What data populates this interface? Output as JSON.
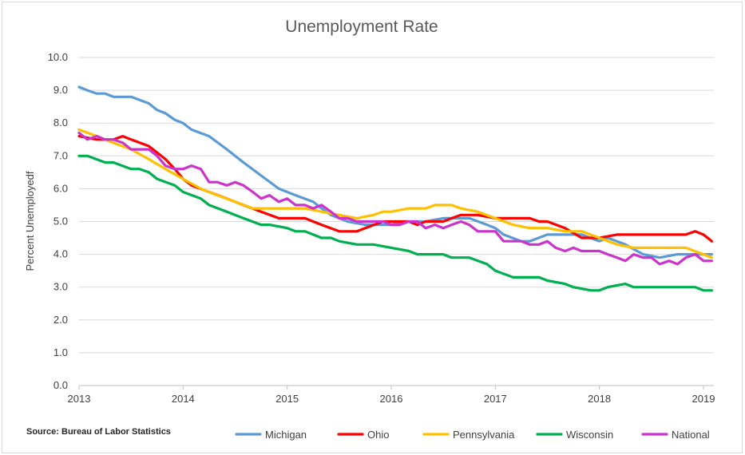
{
  "chart_data": {
    "type": "line",
    "title": "Unemployment Rate",
    "ylabel": "Percent Unemployedf",
    "xlabel": "",
    "source": "Source: Bureau of Labor Statistics",
    "ylim": [
      0,
      10
    ],
    "xlim": [
      2013,
      2019.1
    ],
    "y_ticks": [
      "0.0",
      "1.0",
      "2.0",
      "3.0",
      "4.0",
      "5.0",
      "6.0",
      "7.0",
      "8.0",
      "9.0",
      "10.0"
    ],
    "x_ticks": [
      "2013",
      "2014",
      "2015",
      "2016",
      "2017",
      "2018",
      "2019"
    ],
    "grid": true,
    "legend_position": "bottom",
    "series": [
      {
        "name": "Michigan",
        "color": "#5b9bd5",
        "points": [
          [
            2013.0,
            9.1
          ],
          [
            2013.08,
            9.0
          ],
          [
            2013.17,
            8.9
          ],
          [
            2013.25,
            8.9
          ],
          [
            2013.33,
            8.8
          ],
          [
            2013.5,
            8.8
          ],
          [
            2013.67,
            8.6
          ],
          [
            2013.75,
            8.4
          ],
          [
            2013.83,
            8.3
          ],
          [
            2013.92,
            8.1
          ],
          [
            2014.0,
            8.0
          ],
          [
            2014.08,
            7.8
          ],
          [
            2014.25,
            7.6
          ],
          [
            2014.42,
            7.2
          ],
          [
            2014.58,
            6.8
          ],
          [
            2014.75,
            6.4
          ],
          [
            2014.92,
            6.0
          ],
          [
            2015.0,
            5.9
          ],
          [
            2015.08,
            5.8
          ],
          [
            2015.25,
            5.6
          ],
          [
            2015.33,
            5.4
          ],
          [
            2015.42,
            5.2
          ],
          [
            2015.5,
            5.1
          ],
          [
            2015.58,
            5.0
          ],
          [
            2015.75,
            4.9
          ],
          [
            2015.83,
            4.9
          ],
          [
            2016.0,
            4.9
          ],
          [
            2016.17,
            5.0
          ],
          [
            2016.33,
            5.0
          ],
          [
            2016.5,
            5.1
          ],
          [
            2016.67,
            5.1
          ],
          [
            2016.75,
            5.1
          ],
          [
            2016.92,
            4.9
          ],
          [
            2017.0,
            4.8
          ],
          [
            2017.08,
            4.6
          ],
          [
            2017.25,
            4.4
          ],
          [
            2017.33,
            4.4
          ],
          [
            2017.5,
            4.6
          ],
          [
            2017.67,
            4.6
          ],
          [
            2017.83,
            4.6
          ],
          [
            2018.0,
            4.4
          ],
          [
            2018.08,
            4.5
          ],
          [
            2018.25,
            4.3
          ],
          [
            2018.42,
            4.0
          ],
          [
            2018.58,
            3.9
          ],
          [
            2018.75,
            4.0
          ],
          [
            2018.92,
            4.0
          ],
          [
            2019.08,
            4.0
          ]
        ]
      },
      {
        "name": "Ohio",
        "color": "#ff0000",
        "points": [
          [
            2013.0,
            7.6
          ],
          [
            2013.17,
            7.5
          ],
          [
            2013.25,
            7.5
          ],
          [
            2013.33,
            7.5
          ],
          [
            2013.42,
            7.6
          ],
          [
            2013.5,
            7.5
          ],
          [
            2013.67,
            7.3
          ],
          [
            2013.83,
            6.9
          ],
          [
            2013.92,
            6.6
          ],
          [
            2014.0,
            6.3
          ],
          [
            2014.08,
            6.1
          ],
          [
            2014.25,
            5.9
          ],
          [
            2014.42,
            5.7
          ],
          [
            2014.58,
            5.5
          ],
          [
            2014.75,
            5.3
          ],
          [
            2014.92,
            5.1
          ],
          [
            2015.0,
            5.1
          ],
          [
            2015.17,
            5.1
          ],
          [
            2015.33,
            4.9
          ],
          [
            2015.5,
            4.7
          ],
          [
            2015.67,
            4.7
          ],
          [
            2015.75,
            4.8
          ],
          [
            2015.92,
            5.0
          ],
          [
            2016.0,
            5.0
          ],
          [
            2016.17,
            5.0
          ],
          [
            2016.25,
            4.9
          ],
          [
            2016.33,
            5.0
          ],
          [
            2016.5,
            5.0
          ],
          [
            2016.58,
            5.1
          ],
          [
            2016.67,
            5.2
          ],
          [
            2016.83,
            5.2
          ],
          [
            2017.0,
            5.1
          ],
          [
            2017.25,
            5.1
          ],
          [
            2017.33,
            5.1
          ],
          [
            2017.42,
            5.0
          ],
          [
            2017.5,
            5.0
          ],
          [
            2017.67,
            4.8
          ],
          [
            2017.83,
            4.5
          ],
          [
            2017.92,
            4.5
          ],
          [
            2018.0,
            4.5
          ],
          [
            2018.17,
            4.6
          ],
          [
            2018.33,
            4.6
          ],
          [
            2018.5,
            4.6
          ],
          [
            2018.67,
            4.6
          ],
          [
            2018.83,
            4.6
          ],
          [
            2018.92,
            4.7
          ],
          [
            2019.0,
            4.6
          ],
          [
            2019.08,
            4.4
          ]
        ]
      },
      {
        "name": "Pennsylvania",
        "color": "#ffc000",
        "points": [
          [
            2013.0,
            7.8
          ],
          [
            2013.17,
            7.6
          ],
          [
            2013.33,
            7.4
          ],
          [
            2013.5,
            7.2
          ],
          [
            2013.67,
            6.9
          ],
          [
            2013.83,
            6.6
          ],
          [
            2014.0,
            6.3
          ],
          [
            2014.17,
            6.0
          ],
          [
            2014.33,
            5.8
          ],
          [
            2014.5,
            5.6
          ],
          [
            2014.67,
            5.4
          ],
          [
            2014.83,
            5.4
          ],
          [
            2015.0,
            5.4
          ],
          [
            2015.17,
            5.4
          ],
          [
            2015.33,
            5.3
          ],
          [
            2015.5,
            5.2
          ],
          [
            2015.67,
            5.1
          ],
          [
            2015.83,
            5.2
          ],
          [
            2015.92,
            5.3
          ],
          [
            2016.0,
            5.3
          ],
          [
            2016.17,
            5.4
          ],
          [
            2016.33,
            5.4
          ],
          [
            2016.42,
            5.5
          ],
          [
            2016.58,
            5.5
          ],
          [
            2016.67,
            5.4
          ],
          [
            2016.83,
            5.3
          ],
          [
            2017.0,
            5.1
          ],
          [
            2017.17,
            4.9
          ],
          [
            2017.33,
            4.8
          ],
          [
            2017.5,
            4.8
          ],
          [
            2017.67,
            4.7
          ],
          [
            2017.83,
            4.7
          ],
          [
            2018.0,
            4.5
          ],
          [
            2018.17,
            4.3
          ],
          [
            2018.33,
            4.2
          ],
          [
            2018.5,
            4.2
          ],
          [
            2018.67,
            4.2
          ],
          [
            2018.83,
            4.2
          ],
          [
            2019.0,
            4.0
          ],
          [
            2019.08,
            3.9
          ]
        ]
      },
      {
        "name": "Wisconsin",
        "color": "#00b050",
        "points": [
          [
            2013.0,
            7.0
          ],
          [
            2013.08,
            7.0
          ],
          [
            2013.25,
            6.8
          ],
          [
            2013.33,
            6.8
          ],
          [
            2013.5,
            6.6
          ],
          [
            2013.58,
            6.6
          ],
          [
            2013.67,
            6.5
          ],
          [
            2013.75,
            6.3
          ],
          [
            2013.92,
            6.1
          ],
          [
            2014.0,
            5.9
          ],
          [
            2014.17,
            5.7
          ],
          [
            2014.25,
            5.5
          ],
          [
            2014.42,
            5.3
          ],
          [
            2014.58,
            5.1
          ],
          [
            2014.75,
            4.9
          ],
          [
            2014.83,
            4.9
          ],
          [
            2015.0,
            4.8
          ],
          [
            2015.08,
            4.7
          ],
          [
            2015.17,
            4.7
          ],
          [
            2015.33,
            4.5
          ],
          [
            2015.42,
            4.5
          ],
          [
            2015.5,
            4.4
          ],
          [
            2015.67,
            4.3
          ],
          [
            2015.83,
            4.3
          ],
          [
            2016.0,
            4.2
          ],
          [
            2016.17,
            4.1
          ],
          [
            2016.25,
            4.0
          ],
          [
            2016.5,
            4.0
          ],
          [
            2016.58,
            3.9
          ],
          [
            2016.75,
            3.9
          ],
          [
            2016.92,
            3.7
          ],
          [
            2017.0,
            3.5
          ],
          [
            2017.17,
            3.3
          ],
          [
            2017.33,
            3.3
          ],
          [
            2017.42,
            3.3
          ],
          [
            2017.5,
            3.2
          ],
          [
            2017.67,
            3.1
          ],
          [
            2017.75,
            3.0
          ],
          [
            2017.92,
            2.9
          ],
          [
            2018.0,
            2.9
          ],
          [
            2018.08,
            3.0
          ],
          [
            2018.25,
            3.1
          ],
          [
            2018.33,
            3.0
          ],
          [
            2018.5,
            3.0
          ],
          [
            2018.67,
            3.0
          ],
          [
            2018.83,
            3.0
          ],
          [
            2018.92,
            3.0
          ],
          [
            2019.0,
            2.9
          ],
          [
            2019.08,
            2.9
          ]
        ]
      },
      {
        "name": "National",
        "color": "#cc33cc",
        "points": [
          [
            2013.0,
            7.7
          ],
          [
            2013.08,
            7.5
          ],
          [
            2013.17,
            7.6
          ],
          [
            2013.25,
            7.5
          ],
          [
            2013.33,
            7.5
          ],
          [
            2013.42,
            7.4
          ],
          [
            2013.5,
            7.2
          ],
          [
            2013.58,
            7.2
          ],
          [
            2013.67,
            7.2
          ],
          [
            2013.75,
            7.0
          ],
          [
            2013.83,
            6.7
          ],
          [
            2013.92,
            6.6
          ],
          [
            2014.0,
            6.6
          ],
          [
            2014.08,
            6.7
          ],
          [
            2014.17,
            6.6
          ],
          [
            2014.25,
            6.2
          ],
          [
            2014.33,
            6.2
          ],
          [
            2014.42,
            6.1
          ],
          [
            2014.5,
            6.2
          ],
          [
            2014.58,
            6.1
          ],
          [
            2014.67,
            5.9
          ],
          [
            2014.75,
            5.7
          ],
          [
            2014.83,
            5.8
          ],
          [
            2014.92,
            5.6
          ],
          [
            2015.0,
            5.7
          ],
          [
            2015.08,
            5.5
          ],
          [
            2015.17,
            5.5
          ],
          [
            2015.25,
            5.4
          ],
          [
            2015.33,
            5.5
          ],
          [
            2015.42,
            5.3
          ],
          [
            2015.5,
            5.1
          ],
          [
            2015.58,
            5.1
          ],
          [
            2015.67,
            5.0
          ],
          [
            2015.75,
            5.0
          ],
          [
            2015.83,
            5.0
          ],
          [
            2015.92,
            5.0
          ],
          [
            2016.0,
            4.9
          ],
          [
            2016.08,
            4.9
          ],
          [
            2016.17,
            5.0
          ],
          [
            2016.25,
            5.0
          ],
          [
            2016.33,
            4.8
          ],
          [
            2016.42,
            4.9
          ],
          [
            2016.5,
            4.8
          ],
          [
            2016.58,
            4.9
          ],
          [
            2016.67,
            5.0
          ],
          [
            2016.75,
            4.9
          ],
          [
            2016.83,
            4.7
          ],
          [
            2016.92,
            4.7
          ],
          [
            2017.0,
            4.7
          ],
          [
            2017.08,
            4.4
          ],
          [
            2017.17,
            4.4
          ],
          [
            2017.25,
            4.4
          ],
          [
            2017.33,
            4.3
          ],
          [
            2017.42,
            4.3
          ],
          [
            2017.5,
            4.4
          ],
          [
            2017.58,
            4.2
          ],
          [
            2017.67,
            4.1
          ],
          [
            2017.75,
            4.2
          ],
          [
            2017.83,
            4.1
          ],
          [
            2018.0,
            4.1
          ],
          [
            2018.08,
            4.0
          ],
          [
            2018.17,
            3.9
          ],
          [
            2018.25,
            3.8
          ],
          [
            2018.33,
            4.0
          ],
          [
            2018.42,
            3.9
          ],
          [
            2018.5,
            3.9
          ],
          [
            2018.58,
            3.7
          ],
          [
            2018.67,
            3.8
          ],
          [
            2018.75,
            3.7
          ],
          [
            2018.83,
            3.9
          ],
          [
            2018.92,
            4.0
          ],
          [
            2019.0,
            3.8
          ],
          [
            2019.08,
            3.8
          ]
        ]
      }
    ]
  }
}
